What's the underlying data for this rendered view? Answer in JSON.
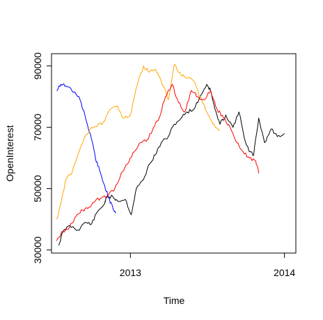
{
  "chart_data": {
    "type": "line",
    "xlabel": "Time",
    "ylabel": "OpenInterest",
    "xlim": [
      "2012-06-28",
      "2014-01-28"
    ],
    "ylim": [
      29000,
      94000
    ],
    "x_ticks": [
      "2013-01-01",
      "2014-01-01"
    ],
    "x_tick_labels": [
      "2013",
      "2014"
    ],
    "y_ticks": [
      30000,
      50000,
      70000,
      90000
    ],
    "y_tick_labels": [
      "30000",
      "50000",
      "70000",
      "90000"
    ],
    "grid": false,
    "legend": "none",
    "series": [
      {
        "color": "#000000",
        "x": [
          "2012-07-15",
          "2012-07-25",
          "2012-08-10",
          "2012-08-30",
          "2012-09-15",
          "2012-10-01",
          "2012-10-15",
          "2012-10-31",
          "2012-11-05",
          "2012-11-20",
          "2012-12-01",
          "2012-12-20",
          "2013-01-03",
          "2013-01-15",
          "2013-02-01",
          "2013-02-15",
          "2013-03-01",
          "2013-03-15",
          "2013-04-01",
          "2013-04-15",
          "2013-05-01",
          "2013-05-15",
          "2013-06-01",
          "2013-06-15",
          "2013-07-01",
          "2013-07-10",
          "2013-07-20",
          "2013-08-01",
          "2013-08-15",
          "2013-09-01",
          "2013-09-15",
          "2013-10-01",
          "2013-10-10",
          "2013-10-20",
          "2013-11-01",
          "2013-11-15",
          "2013-12-01",
          "2013-12-15",
          "2014-01-01"
        ],
        "values": [
          31500,
          36000,
          38000,
          36500,
          39000,
          38500,
          42500,
          45000,
          47000,
          47500,
          46000,
          46500,
          41500,
          50000,
          53000,
          58000,
          61000,
          65000,
          67000,
          71000,
          73000,
          75000,
          76000,
          80000,
          84000,
          82000,
          76000,
          71000,
          74000,
          70000,
          75000,
          65000,
          62000,
          61000,
          73000,
          65000,
          69500,
          67000,
          68000
        ]
      },
      {
        "color": "#0000ff",
        "x": [
          "2012-07-10",
          "2012-07-20",
          "2012-08-01",
          "2012-08-15",
          "2012-09-01",
          "2012-09-15",
          "2012-10-01",
          "2012-10-10",
          "2012-10-20",
          "2012-11-01",
          "2012-11-10",
          "2012-11-20",
          "2012-11-27"
        ],
        "values": [
          82000,
          84000,
          83500,
          82000,
          80000,
          74000,
          66000,
          60000,
          56000,
          51000,
          47000,
          44000,
          42000
        ]
      },
      {
        "color": "#ffa500",
        "x": [
          "2012-07-10",
          "2012-07-20",
          "2012-08-01",
          "2012-08-15",
          "2012-09-01",
          "2012-09-15",
          "2012-10-01",
          "2012-10-15",
          "2012-11-01",
          "2012-11-15",
          "2012-12-01",
          "2012-12-15",
          "2013-01-01",
          "2013-01-15",
          "2013-02-01",
          "2013-02-15",
          "2013-03-01",
          "2013-03-15",
          "2013-04-01",
          "2013-04-15",
          "2013-05-01",
          "2013-05-15",
          "2013-06-01",
          "2013-06-15",
          "2013-07-01",
          "2013-07-15",
          "2013-08-01"
        ],
        "values": [
          40000,
          45000,
          53000,
          55000,
          62000,
          67000,
          70000,
          70500,
          72000,
          76000,
          77000,
          73000,
          74000,
          83000,
          90000,
          88000,
          89000,
          85000,
          79000,
          90500,
          87000,
          86000,
          85000,
          80000,
          75000,
          71000,
          69000
        ]
      },
      {
        "color": "#ff0000",
        "x": [
          "2012-07-10",
          "2012-07-25",
          "2012-08-10",
          "2012-08-25",
          "2012-09-10",
          "2012-09-25",
          "2012-10-10",
          "2012-10-25",
          "2012-11-10",
          "2012-11-25",
          "2012-12-10",
          "2012-12-25",
          "2013-01-10",
          "2013-01-25",
          "2013-02-10",
          "2013-02-25",
          "2013-03-10",
          "2013-03-25",
          "2013-04-10",
          "2013-04-25",
          "2013-05-10",
          "2013-05-25",
          "2013-06-10",
          "2013-06-25",
          "2013-07-10",
          "2013-07-25",
          "2013-08-10",
          "2013-08-25",
          "2013-09-10",
          "2013-09-25",
          "2013-10-10",
          "2013-10-25",
          "2013-11-01"
        ],
        "values": [
          33000,
          36000,
          37500,
          41000,
          43000,
          44000,
          46000,
          47000,
          48000,
          50000,
          55000,
          58000,
          62000,
          65000,
          66000,
          70000,
          73000,
          80000,
          84000,
          78000,
          75000,
          82000,
          80000,
          79000,
          82000,
          76000,
          73000,
          70000,
          65000,
          62000,
          60000,
          59000,
          55000
        ]
      }
    ]
  }
}
